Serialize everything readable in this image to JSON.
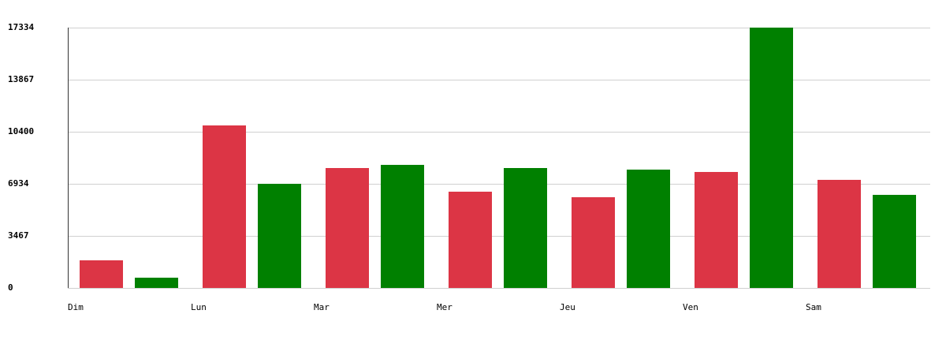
{
  "chart_data": {
    "type": "bar",
    "categories": [
      "Dim",
      "Lun",
      "Mar",
      "Mer",
      "Jeu",
      "Ven",
      "Sam"
    ],
    "series": [
      {
        "color": "#dc3545",
        "values": [
          1839,
          10821,
          7984,
          6409,
          6041,
          7722,
          7197
        ]
      },
      {
        "color": "#008000",
        "values": [
          683,
          6934,
          8195,
          7984,
          7879,
          17334,
          6198
        ]
      }
    ],
    "ylim": [
      0,
      17334
    ],
    "yticks": [
      0,
      3467,
      6934,
      10400,
      13867,
      17334
    ],
    "grid": true
  }
}
